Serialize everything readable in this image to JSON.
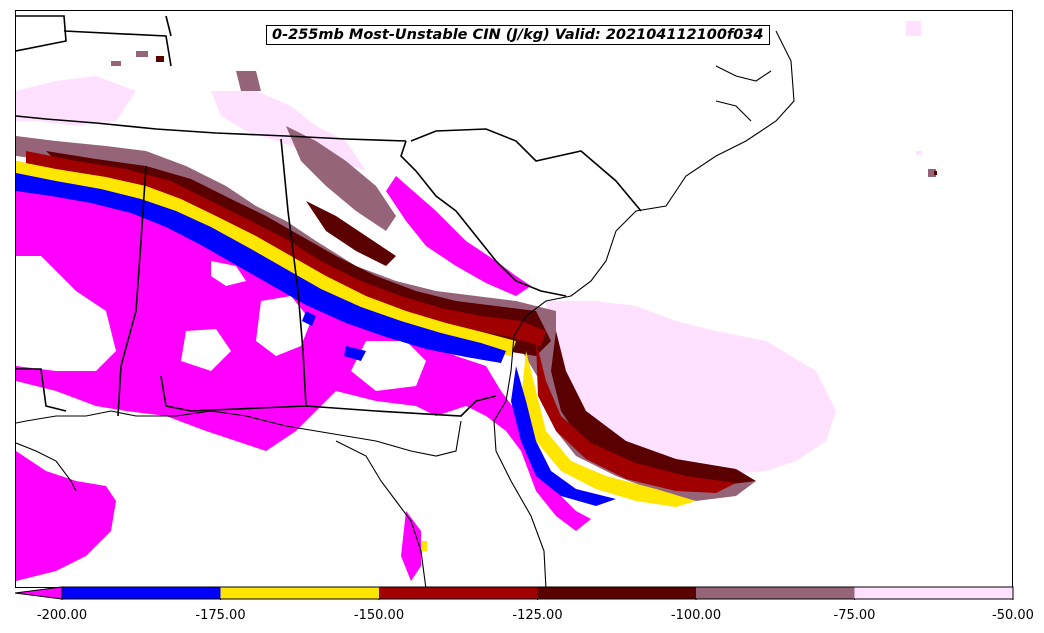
{
  "title": "0-255mb Most-Unstable CIN (J/kg) Valid: 202104112100f034",
  "colorbar": {
    "bins": [
      {
        "from": -200,
        "to": -175,
        "color": "#0000ff"
      },
      {
        "from": -175,
        "to": -150,
        "color": "#ffe600"
      },
      {
        "from": -150,
        "to": -125,
        "color": "#a00000"
      },
      {
        "from": -125,
        "to": -100,
        "color": "#5a0000"
      },
      {
        "from": -100,
        "to": -75,
        "color": "#966478"
      },
      {
        "from": -75,
        "to": -50,
        "color": "#ffe1ff"
      }
    ],
    "extend_color": "#ff00ff",
    "tick_labels": [
      "-200.00",
      "-175.00",
      "-150.00",
      "-125.00",
      "-100.00",
      "-75.00",
      "-50.00"
    ]
  },
  "colors": {
    "magenta": "#ff00ff",
    "blue": "#0000ff",
    "yellow": "#ffe600",
    "red": "#a00000",
    "maroon": "#5a0000",
    "mauve": "#966478",
    "pink": "#ffe1ff",
    "boundary": "#000000"
  }
}
